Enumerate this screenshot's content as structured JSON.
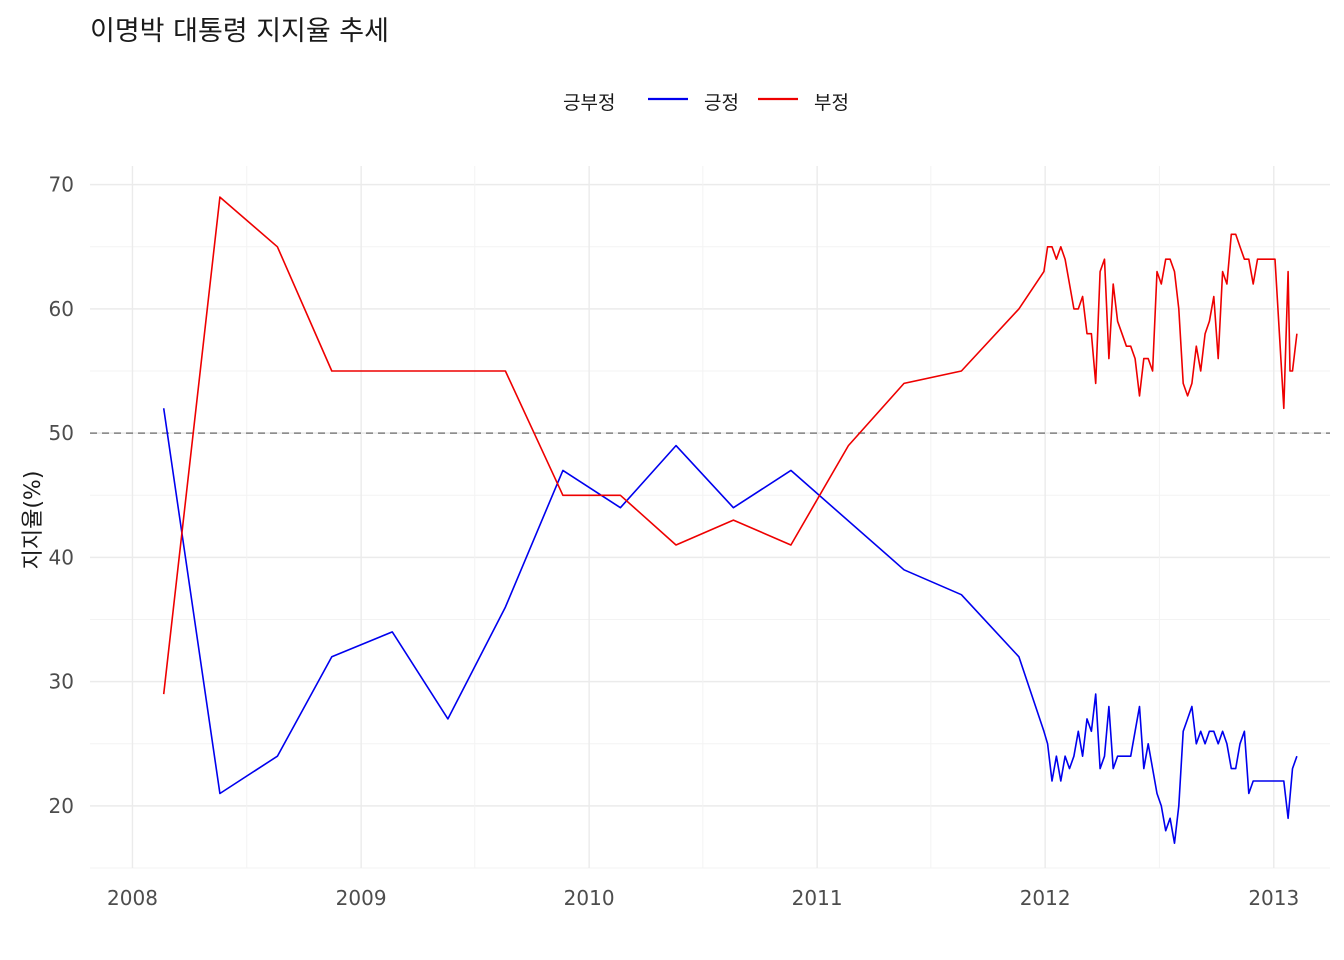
{
  "chart_data": {
    "type": "line",
    "title": "이명박 대통령 지지율 추세",
    "xlabel": "",
    "ylabel": "지지율(%)",
    "legend": {
      "title": "긍부정",
      "position": "top"
    },
    "x_ticks": [
      "2008",
      "2009",
      "2010",
      "2011",
      "2012",
      "2013"
    ],
    "y_ticks": [
      20,
      30,
      40,
      50,
      60,
      70
    ],
    "xlim": [
      "2007-10-25",
      "2013-04-01"
    ],
    "ylim": [
      15,
      71.5
    ],
    "reference_line": {
      "y": 50,
      "style": "dashed",
      "color": "#808080"
    },
    "grid": true,
    "series": [
      {
        "name": "긍정",
        "color": "#0000ee",
        "points": [
          [
            "2008-02-20",
            52
          ],
          [
            "2008-05-20",
            21
          ],
          [
            "2008-08-20",
            24
          ],
          [
            "2008-11-15",
            32
          ],
          [
            "2009-02-20",
            34
          ],
          [
            "2009-05-20",
            27
          ],
          [
            "2009-08-20",
            36
          ],
          [
            "2009-11-20",
            47
          ],
          [
            "2010-02-20",
            44
          ],
          [
            "2010-05-20",
            49
          ],
          [
            "2010-08-20",
            44
          ],
          [
            "2010-11-20",
            47
          ],
          [
            "2011-05-20",
            39
          ],
          [
            "2011-08-20",
            37
          ],
          [
            "2011-11-20",
            32
          ],
          [
            "2011-12-30",
            26
          ],
          [
            "2012-01-05",
            25
          ],
          [
            "2012-01-12",
            22
          ],
          [
            "2012-01-19",
            24
          ],
          [
            "2012-01-26",
            22
          ],
          [
            "2012-02-02",
            24
          ],
          [
            "2012-02-09",
            23
          ],
          [
            "2012-02-16",
            24
          ],
          [
            "2012-02-23",
            26
          ],
          [
            "2012-03-01",
            24
          ],
          [
            "2012-03-08",
            27
          ],
          [
            "2012-03-15",
            26
          ],
          [
            "2012-03-22",
            29
          ],
          [
            "2012-03-29",
            23
          ],
          [
            "2012-04-05",
            24
          ],
          [
            "2012-04-12",
            28
          ],
          [
            "2012-04-19",
            23
          ],
          [
            "2012-04-26",
            24
          ],
          [
            "2012-05-03",
            24
          ],
          [
            "2012-05-10",
            24
          ],
          [
            "2012-05-17",
            24
          ],
          [
            "2012-05-24",
            26
          ],
          [
            "2012-05-31",
            28
          ],
          [
            "2012-06-07",
            23
          ],
          [
            "2012-06-14",
            25
          ],
          [
            "2012-06-21",
            23
          ],
          [
            "2012-06-28",
            21
          ],
          [
            "2012-07-05",
            20
          ],
          [
            "2012-07-12",
            18
          ],
          [
            "2012-07-19",
            19
          ],
          [
            "2012-07-26",
            17
          ],
          [
            "2012-08-02",
            20
          ],
          [
            "2012-08-09",
            26
          ],
          [
            "2012-08-16",
            27
          ],
          [
            "2012-08-23",
            28
          ],
          [
            "2012-08-30",
            25
          ],
          [
            "2012-09-06",
            26
          ],
          [
            "2012-09-13",
            25
          ],
          [
            "2012-09-20",
            26
          ],
          [
            "2012-09-27",
            26
          ],
          [
            "2012-10-04",
            25
          ],
          [
            "2012-10-11",
            26
          ],
          [
            "2012-10-18",
            25
          ],
          [
            "2012-10-25",
            23
          ],
          [
            "2012-11-01",
            23
          ],
          [
            "2012-11-08",
            25
          ],
          [
            "2012-11-15",
            26
          ],
          [
            "2012-11-22",
            21
          ],
          [
            "2012-11-29",
            22
          ],
          [
            "2012-12-06",
            22
          ],
          [
            "2012-12-13",
            22
          ],
          [
            "2012-12-20",
            22
          ],
          [
            "2012-12-27",
            22
          ],
          [
            "2013-01-03",
            22
          ],
          [
            "2013-01-10",
            22
          ],
          [
            "2013-01-17",
            22
          ],
          [
            "2013-01-24",
            19
          ],
          [
            "2013-01-31",
            23
          ],
          [
            "2013-02-07",
            24
          ]
        ]
      },
      {
        "name": "부정",
        "color": "#ee0000",
        "points": [
          [
            "2008-02-20",
            29
          ],
          [
            "2008-05-20",
            69
          ],
          [
            "2008-08-20",
            65
          ],
          [
            "2008-11-15",
            55
          ],
          [
            "2009-08-20",
            55
          ],
          [
            "2009-11-20",
            45
          ],
          [
            "2010-02-20",
            45
          ],
          [
            "2010-05-20",
            41
          ],
          [
            "2010-08-20",
            43
          ],
          [
            "2010-11-20",
            41
          ],
          [
            "2011-02-20",
            49
          ],
          [
            "2011-05-20",
            54
          ],
          [
            "2011-08-20",
            55
          ],
          [
            "2011-11-20",
            60
          ],
          [
            "2011-12-30",
            63
          ],
          [
            "2012-01-05",
            65
          ],
          [
            "2012-01-12",
            65
          ],
          [
            "2012-01-19",
            64
          ],
          [
            "2012-01-26",
            65
          ],
          [
            "2012-02-02",
            64
          ],
          [
            "2012-02-09",
            62
          ],
          [
            "2012-02-16",
            60
          ],
          [
            "2012-02-23",
            60
          ],
          [
            "2012-03-01",
            61
          ],
          [
            "2012-03-08",
            58
          ],
          [
            "2012-03-15",
            58
          ],
          [
            "2012-03-22",
            54
          ],
          [
            "2012-03-29",
            63
          ],
          [
            "2012-04-05",
            64
          ],
          [
            "2012-04-12",
            56
          ],
          [
            "2012-04-19",
            62
          ],
          [
            "2012-04-26",
            59
          ],
          [
            "2012-05-03",
            58
          ],
          [
            "2012-05-10",
            57
          ],
          [
            "2012-05-17",
            57
          ],
          [
            "2012-05-24",
            56
          ],
          [
            "2012-05-31",
            53
          ],
          [
            "2012-06-07",
            56
          ],
          [
            "2012-06-14",
            56
          ],
          [
            "2012-06-21",
            55
          ],
          [
            "2012-06-28",
            63
          ],
          [
            "2012-07-05",
            62
          ],
          [
            "2012-07-12",
            64
          ],
          [
            "2012-07-19",
            64
          ],
          [
            "2012-07-26",
            63
          ],
          [
            "2012-08-02",
            60
          ],
          [
            "2012-08-09",
            54
          ],
          [
            "2012-08-16",
            53
          ],
          [
            "2012-08-23",
            54
          ],
          [
            "2012-08-30",
            57
          ],
          [
            "2012-09-06",
            55
          ],
          [
            "2012-09-13",
            58
          ],
          [
            "2012-09-20",
            59
          ],
          [
            "2012-09-27",
            61
          ],
          [
            "2012-10-04",
            56
          ],
          [
            "2012-10-11",
            63
          ],
          [
            "2012-10-18",
            62
          ],
          [
            "2012-10-25",
            66
          ],
          [
            "2012-11-01",
            66
          ],
          [
            "2012-11-08",
            65
          ],
          [
            "2012-11-15",
            64
          ],
          [
            "2012-11-22",
            64
          ],
          [
            "2012-11-29",
            62
          ],
          [
            "2012-12-06",
            64
          ],
          [
            "2012-12-13",
            64
          ],
          [
            "2012-12-20",
            64
          ],
          [
            "2012-12-27",
            64
          ],
          [
            "2013-01-03",
            64
          ],
          [
            "2013-01-10",
            58
          ],
          [
            "2013-01-17",
            52
          ],
          [
            "2013-01-24",
            63
          ],
          [
            "2013-01-27",
            55
          ],
          [
            "2013-01-31",
            55
          ],
          [
            "2013-02-07",
            58
          ]
        ]
      }
    ]
  }
}
